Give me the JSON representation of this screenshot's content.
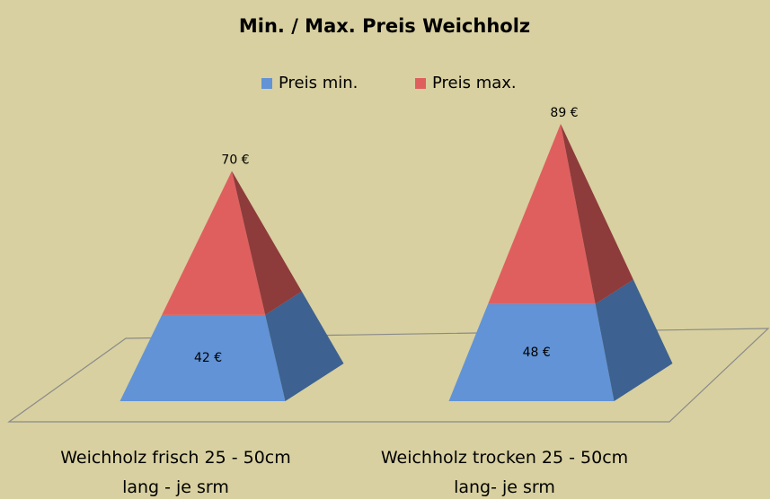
{
  "chart_data": {
    "type": "pyramid-stacked",
    "title": "Min. / Max. Preis Weichholz",
    "categories": [
      "Weichholz frisch 25 - 50cm lang - je srm",
      "Weichholz trocken 25 - 50cm lang- je srm"
    ],
    "series": [
      {
        "name": "Preis min.",
        "color": "#6193d6",
        "side_color": "#3d6190",
        "values": [
          42,
          48
        ],
        "value_labels": [
          "42 €",
          "48 €"
        ]
      },
      {
        "name": "Preis max.",
        "color": "#df5f5f",
        "side_color": "#8e3b3b",
        "values": [
          70,
          89
        ],
        "value_labels": [
          "70 €",
          "89 €"
        ]
      }
    ],
    "legend": "top"
  }
}
